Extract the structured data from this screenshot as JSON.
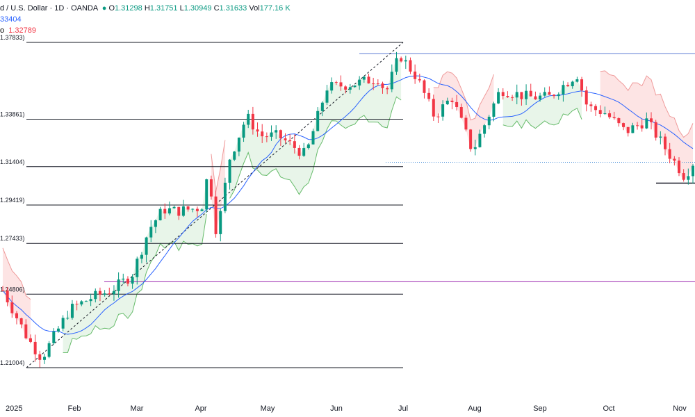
{
  "header": {
    "title": "d / U.S. Dollar · 1D · OANDA",
    "o_label": "O",
    "o_value": "1.31298",
    "h_label": "H",
    "h_value": "1.31751",
    "l_label": "L",
    "l_value": "1.30949",
    "c_label": "C",
    "c_value": "1.31633",
    "vol_label": "Vol",
    "vol_value": "177.16 K",
    "ma_value": "33404",
    "st_label": "o",
    "st_value": "1.32789"
  },
  "colors": {
    "up": "#089981",
    "down": "#f23645",
    "ma": "#2962ff",
    "st_up_fill": "#e8f5e9",
    "st_down_fill": "#fde4e4",
    "st_up_line": "#66bb6a",
    "st_down_line": "#ef9a9a",
    "fib": "#131722",
    "purple": "#9c27b0",
    "trend": "#131722",
    "hline": "#5b7bd5"
  },
  "chart_data": {
    "type": "candlestick",
    "title": "d / U.S. Dollar · 1D · OANDA",
    "x_ticks": [
      "2025",
      "Feb",
      "Mar",
      "Apr",
      "May",
      "Jun",
      "Jul",
      "Aug",
      "Sep",
      "Oct",
      "Nov"
    ],
    "fib_levels": [
      {
        "label": "1.37833)",
        "value": 1.37833
      },
      {
        "label": "1.33861)",
        "value": 1.33861
      },
      {
        "label": "1.31404)",
        "value": 1.31404
      },
      {
        "label": "1.29419)",
        "value": 1.29419
      },
      {
        "label": "1.27433)",
        "value": 1.27433
      },
      {
        "label": "1.24806)",
        "value": 1.24806
      },
      {
        "label": "1.21004)",
        "value": 1.21004
      }
    ],
    "purple_level": 1.2545,
    "top_resistance": 1.3725,
    "ylim": [
      1.19,
      1.4
    ],
    "close_path": [
      [
        "Jan",
        1.245
      ],
      [
        "Jan",
        1.225
      ],
      [
        "Jan",
        1.215
      ],
      [
        "Feb",
        1.238
      ],
      [
        "Feb",
        1.248
      ],
      [
        "Feb",
        1.241
      ],
      [
        "Mar",
        1.262
      ],
      [
        "Mar",
        1.285
      ],
      [
        "Mar",
        1.291
      ],
      [
        "Apr",
        1.292
      ],
      [
        "Apr",
        1.312
      ],
      [
        "Apr",
        1.278
      ],
      [
        "May",
        1.318
      ],
      [
        "May",
        1.335
      ],
      [
        "May",
        1.325
      ],
      [
        "Jun",
        1.352
      ],
      [
        "Jun",
        1.358
      ],
      [
        "Jun",
        1.365
      ],
      [
        "Jul",
        1.372
      ],
      [
        "Jul",
        1.352
      ],
      [
        "Jul",
        1.34
      ],
      [
        "Aug",
        1.318
      ],
      [
        "Aug",
        1.345
      ],
      [
        "Aug",
        1.352
      ],
      [
        "Sep",
        1.35
      ],
      [
        "Sep",
        1.348
      ],
      [
        "Sep",
        1.363
      ],
      [
        "Oct",
        1.342
      ],
      [
        "Oct",
        1.335
      ],
      [
        "Oct",
        1.328
      ],
      [
        "Nov",
        1.309
      ],
      [
        "Nov",
        1.316
      ]
    ]
  }
}
